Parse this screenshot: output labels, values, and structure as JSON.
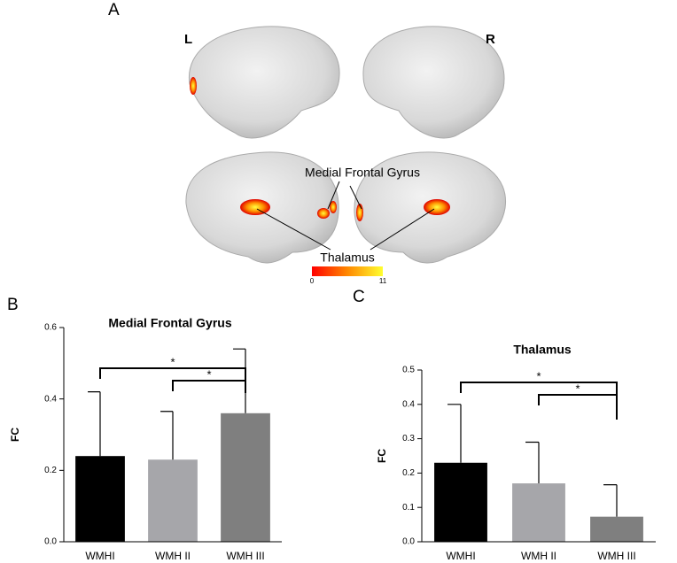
{
  "figure": {
    "panel_labels": [
      "A",
      "B",
      "C"
    ],
    "brain": {
      "left_label": "L",
      "right_label": "R",
      "region_labels": [
        "Medial Frontal Gyrus",
        "Thalamus"
      ],
      "colorbar_ticks": [
        0,
        11
      ]
    }
  },
  "chart_data": [
    {
      "type": "bar",
      "title": "Medial Frontal Gyrus",
      "y_label": "FC",
      "categories": [
        "WMHI",
        "WMH II",
        "WMH III"
      ],
      "values": [
        0.24,
        0.23,
        0.36
      ],
      "errors": [
        0.18,
        0.135,
        0.18
      ],
      "colors": [
        "#000000",
        "#a6a6aa",
        "#7f7f7f"
      ],
      "ylim": [
        0,
        0.6
      ],
      "yticks": [
        {
          "value": 0,
          "label": "0.0"
        },
        0.2,
        0.4,
        0.6
      ],
      "significance": [
        {
          "pair": [
            0,
            2
          ],
          "label": "*"
        },
        {
          "pair": [
            1,
            2
          ],
          "label": "*"
        }
      ]
    },
    {
      "type": "bar",
      "title": "Thalamus",
      "y_label": "FC",
      "categories": [
        "WMHI",
        "WMH II",
        "WMH III"
      ],
      "values": [
        0.23,
        0.17,
        0.073
      ],
      "errors": [
        0.17,
        0.12,
        0.093
      ],
      "colors": [
        "#000000",
        "#a6a6aa",
        "#7f7f7f"
      ],
      "ylim": [
        0,
        0.5
      ],
      "yticks": [
        {
          "value": 0,
          "label": "0.0"
        },
        0.1,
        0.2,
        0.3,
        0.4,
        0.5
      ],
      "significance": [
        {
          "pair": [
            0,
            2
          ],
          "label": "*"
        },
        {
          "pair": [
            1,
            2
          ],
          "label": "*"
        }
      ]
    }
  ]
}
